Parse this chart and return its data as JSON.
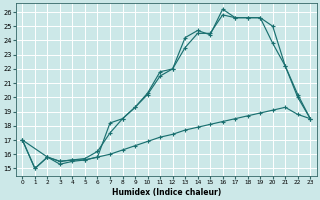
{
  "xlabel": "Humidex (Indice chaleur)",
  "bg_color": "#cce8e8",
  "grid_color": "#ffffff",
  "line_color": "#1a7070",
  "xlim": [
    -0.5,
    23.5
  ],
  "ylim": [
    14.5,
    26.6
  ],
  "xticks": [
    0,
    1,
    2,
    3,
    4,
    5,
    6,
    7,
    8,
    9,
    10,
    11,
    12,
    13,
    14,
    15,
    16,
    17,
    18,
    19,
    20,
    21,
    22,
    23
  ],
  "yticks": [
    15,
    16,
    17,
    18,
    19,
    20,
    21,
    22,
    23,
    24,
    25,
    26
  ],
  "line1_x": [
    0,
    1,
    2,
    3,
    4,
    5,
    6,
    7,
    8,
    9,
    10,
    11,
    12,
    13,
    14,
    15,
    16,
    17,
    18,
    19,
    20,
    21,
    22,
    23
  ],
  "line1_y": [
    17.0,
    15.0,
    15.8,
    15.5,
    15.6,
    15.6,
    15.8,
    18.2,
    18.5,
    19.3,
    20.3,
    21.8,
    22.0,
    24.2,
    24.7,
    24.4,
    26.2,
    25.6,
    25.6,
    25.6,
    25.0,
    22.2,
    20.0,
    18.5
  ],
  "line2_x": [
    0,
    2,
    3,
    4,
    5,
    6,
    7,
    8,
    9,
    10,
    11,
    12,
    13,
    14,
    15,
    16,
    17,
    18,
    19,
    20,
    21,
    22,
    23
  ],
  "line2_y": [
    17.0,
    15.8,
    15.5,
    15.6,
    15.7,
    16.2,
    17.5,
    18.5,
    19.3,
    20.2,
    21.5,
    22.0,
    23.5,
    24.5,
    24.5,
    25.8,
    25.6,
    25.6,
    25.6,
    23.8,
    22.2,
    20.2,
    18.5
  ],
  "line3_x": [
    0,
    1,
    2,
    3,
    4,
    5,
    6,
    7,
    8,
    9,
    10,
    11,
    12,
    13,
    14,
    15,
    16,
    17,
    18,
    19,
    20,
    21,
    22,
    23
  ],
  "line3_y": [
    17.0,
    15.0,
    15.8,
    15.3,
    15.5,
    15.6,
    15.8,
    16.0,
    16.3,
    16.6,
    16.9,
    17.2,
    17.4,
    17.7,
    17.9,
    18.1,
    18.3,
    18.5,
    18.7,
    18.9,
    19.1,
    19.3,
    18.8,
    18.5
  ]
}
